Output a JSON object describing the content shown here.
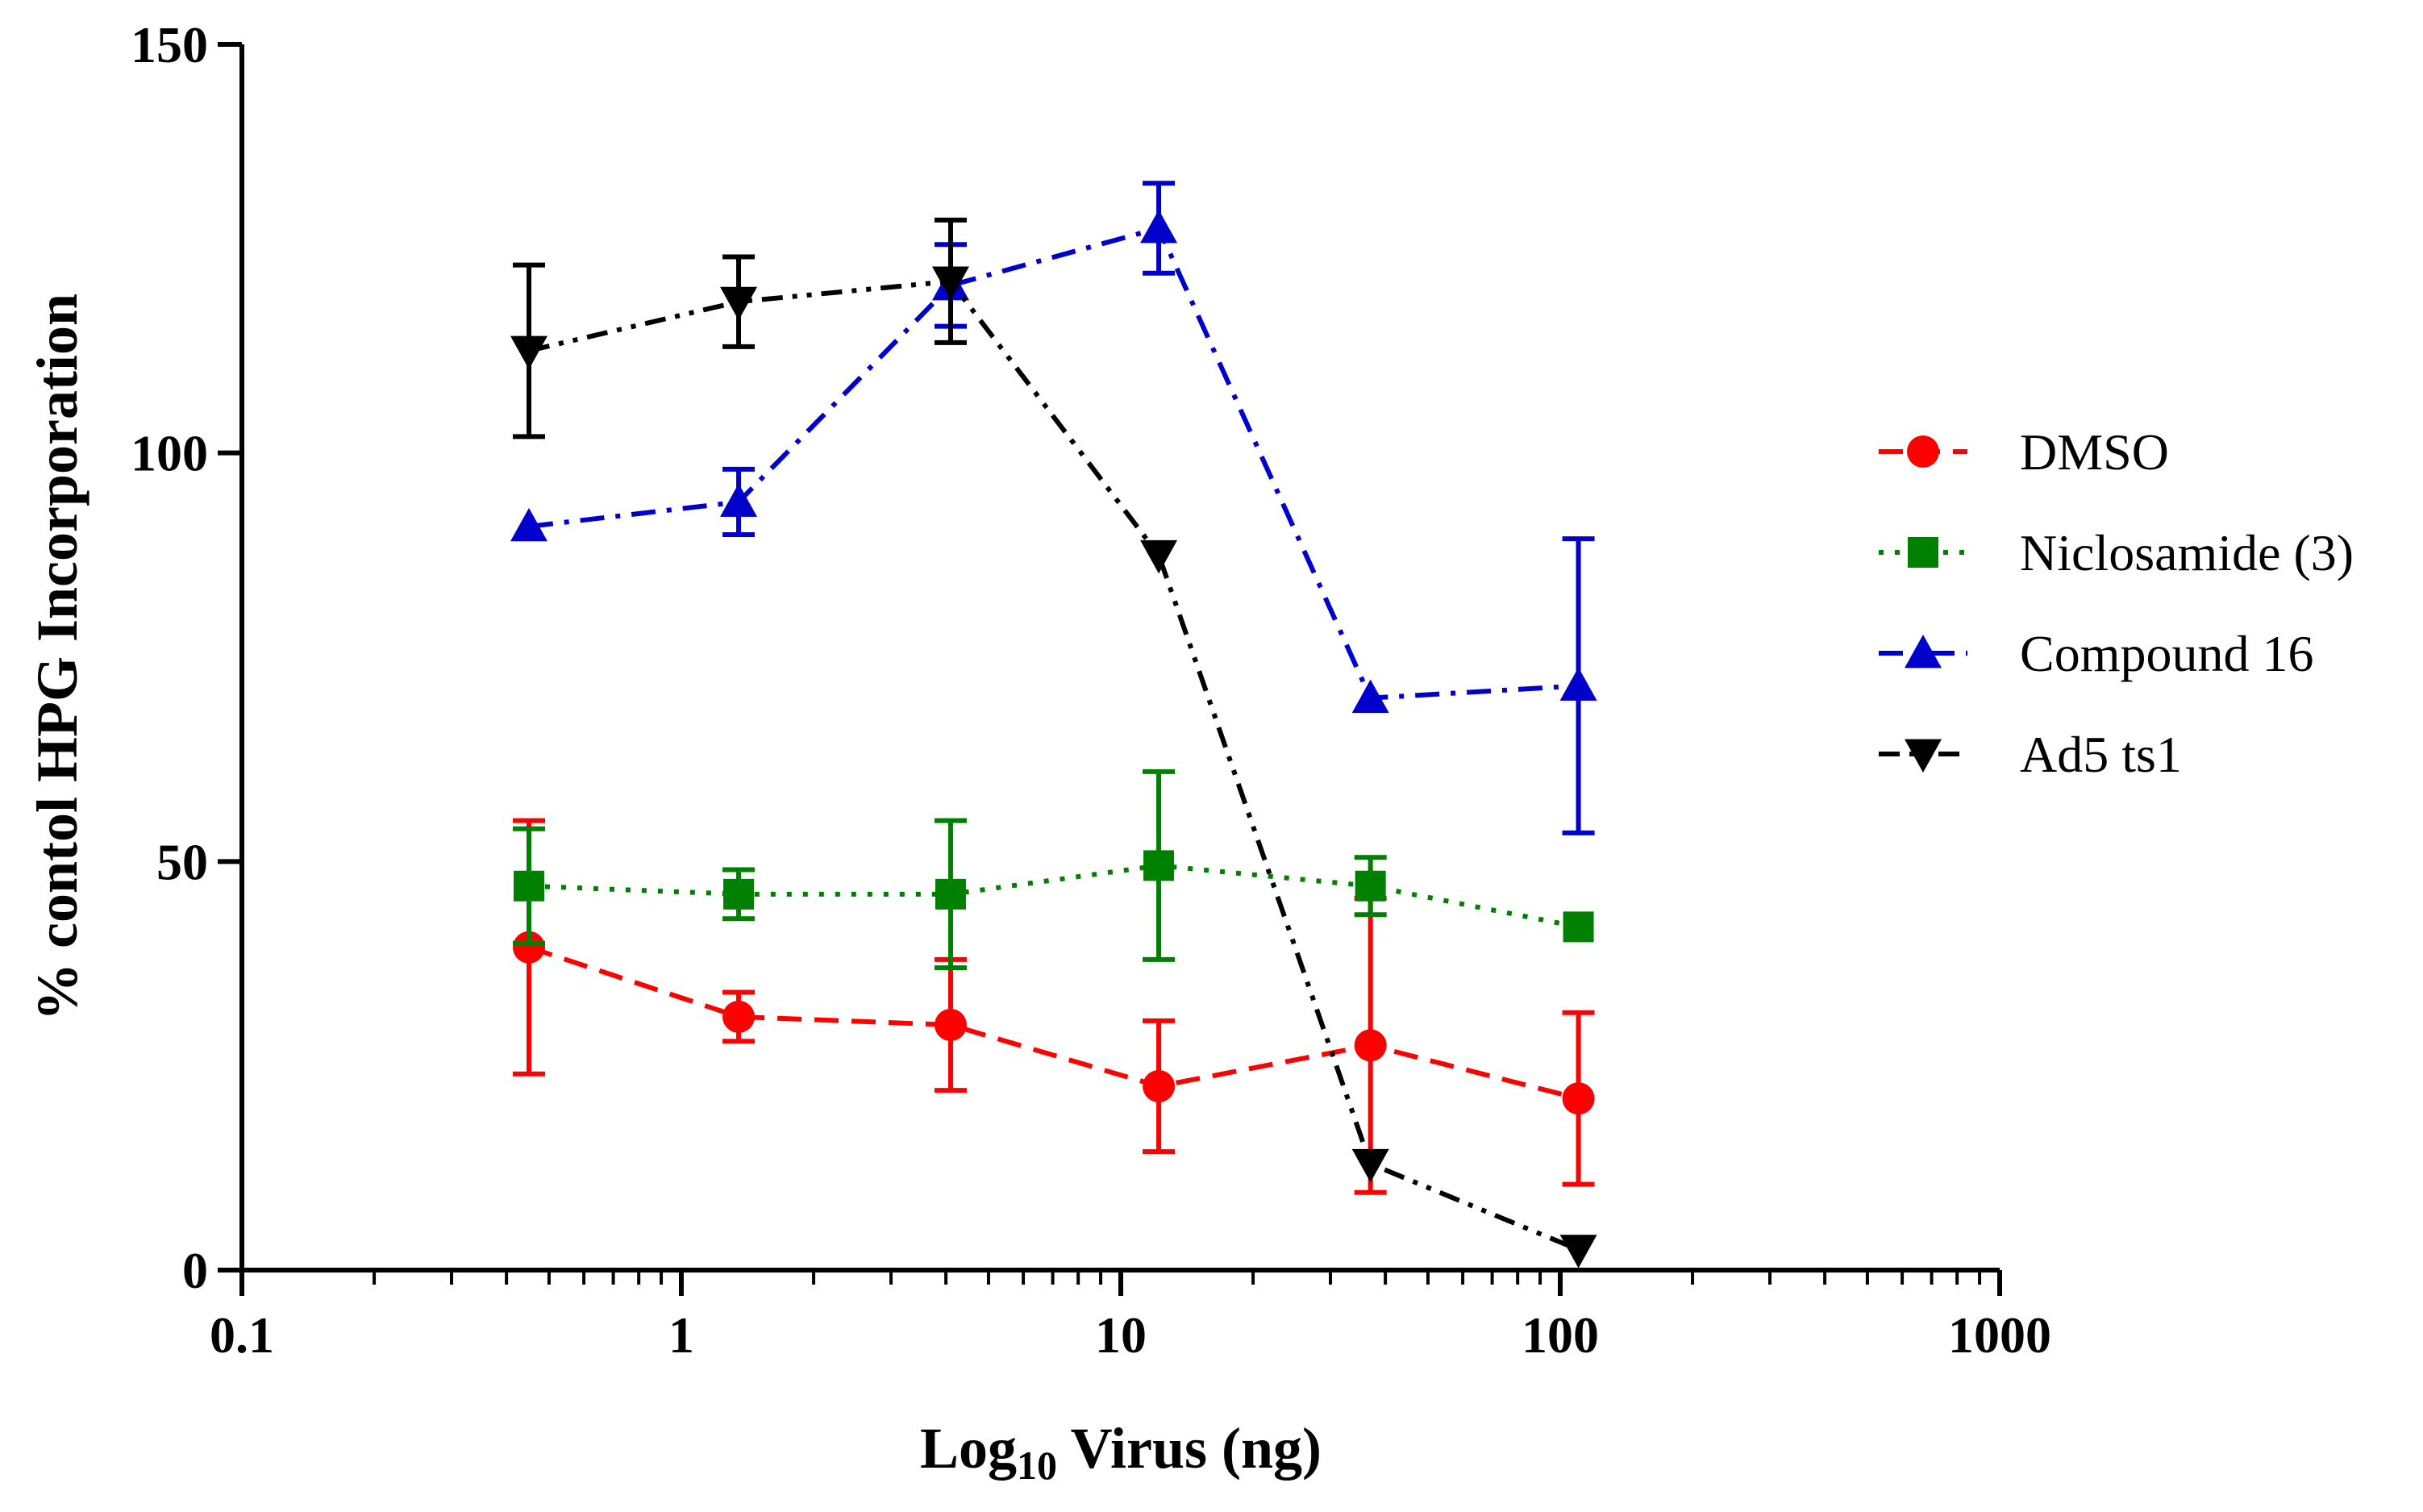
{
  "chart_data": {
    "type": "line",
    "xscale": "log",
    "xlim": [
      0.1,
      1000
    ],
    "ylim": [
      0,
      150
    ],
    "xticks": [
      "0.1",
      "1",
      "10",
      "100",
      "1000"
    ],
    "yticks": [
      "0",
      "50",
      "100",
      "150"
    ],
    "ylabel": "% contol HPG Incorporation",
    "xlabel": {
      "prefix": "Log",
      "subscript": "10",
      "suffix": " Virus (ng)"
    },
    "x": [
      0.45,
      1.35,
      4.1,
      12.2,
      37,
      110
    ],
    "series": [
      {
        "name": "DMSO",
        "color": "#ff0000",
        "marker": "circle",
        "dash": "dash",
        "values": [
          39.5,
          31,
          30,
          22.5,
          27.5,
          21
        ],
        "errors": [
          15.5,
          3,
          8,
          8,
          18,
          10.5
        ]
      },
      {
        "name": "Niclosamide (3)",
        "color": "#008000",
        "marker": "square",
        "dash": "dot",
        "values": [
          47,
          46,
          46,
          49.5,
          47,
          42
        ],
        "errors": [
          7,
          3,
          9,
          11.5,
          3.5,
          0
        ]
      },
      {
        "name": "Compound 16",
        "color": "#0000cc",
        "marker": "triangle-up",
        "dash": "dashdot",
        "values": [
          91,
          94,
          120.5,
          127.5,
          70,
          71.5
        ],
        "errors": [
          0,
          4,
          5,
          5.5,
          0,
          18
        ]
      },
      {
        "name": "Ad5 ts1",
        "color": "#000000",
        "marker": "triangle-down",
        "dash": "dashdotdot",
        "values": [
          112.5,
          118.5,
          121,
          87.5,
          13,
          2.5
        ],
        "errors": [
          10.5,
          5.5,
          7.5,
          0,
          0,
          0
        ]
      }
    ],
    "legend_position": "right"
  }
}
